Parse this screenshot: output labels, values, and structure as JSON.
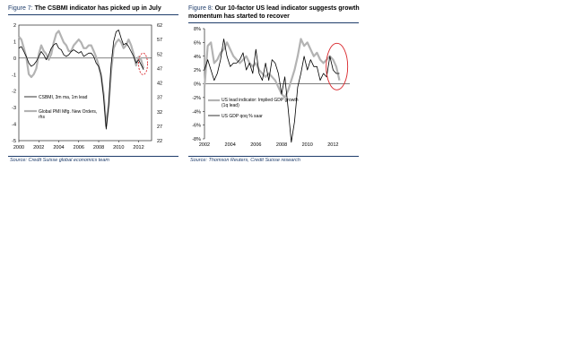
{
  "colors": {
    "accent": "#1f3d6b",
    "grey_series": "#b3b3b3",
    "black_series": "#000000",
    "circle": "#d9252a"
  },
  "panels": [
    {
      "figure": "Figure 7:",
      "title": "The CSBMI indicator has picked up in July",
      "source": "Source: Credit Suisse global economics team"
    },
    {
      "figure": "Figure 8:",
      "title_line1": "Our 10-factor US lead indicator suggests growth",
      "title_line2": "momentum has started to recover",
      "source": "Source: Thomson Reuters, Credit Suisse research"
    }
  ],
  "chart_data": [
    {
      "type": "line",
      "title": "The CSBMI indicator has picked up in July",
      "x_ticks": [
        "2000",
        "2002",
        "2004",
        "2006",
        "2008",
        "2010",
        "2012"
      ],
      "xlim": [
        2000,
        2013.3
      ],
      "y_left_ticks": [
        "2",
        "1",
        "0",
        "-1",
        "-2",
        "-3",
        "-4",
        "-5"
      ],
      "y_left_lim": [
        -5,
        2
      ],
      "y_right_ticks": [
        "62",
        "57",
        "52",
        "47",
        "42",
        "37",
        "32",
        "27",
        "22"
      ],
      "y_right_lim": [
        22,
        62
      ],
      "legend": [
        "CSBMI, 3m ma, 1m lead",
        "Global PMI Mfg. New Orders, rhs"
      ],
      "annotation": "red dashed ellipse around latest readings (2012)",
      "series": [
        {
          "name": "CSBMI, 3m ma, 1m lead",
          "axis": "left",
          "color": "#000000",
          "x": [
            2000,
            2000.25,
            2000.5,
            2000.75,
            2001,
            2001.25,
            2001.5,
            2001.75,
            2002,
            2002.25,
            2002.5,
            2002.75,
            2003,
            2003.25,
            2003.5,
            2003.75,
            2004,
            2004.25,
            2004.5,
            2004.75,
            2005,
            2005.25,
            2005.5,
            2005.75,
            2006,
            2006.25,
            2006.5,
            2006.75,
            2007,
            2007.25,
            2007.5,
            2007.75,
            2008,
            2008.25,
            2008.5,
            2008.75,
            2009,
            2009.25,
            2009.5,
            2009.75,
            2010,
            2010.25,
            2010.5,
            2010.75,
            2011,
            2011.25,
            2011.5,
            2011.75,
            2012,
            2012.25,
            2012.5
          ],
          "values": [
            0.6,
            0.7,
            0.4,
            0.1,
            -0.3,
            -0.5,
            -0.4,
            -0.2,
            0.1,
            0.4,
            0.2,
            -0.1,
            0.2,
            0.6,
            0.8,
            0.9,
            0.6,
            0.5,
            0.2,
            0.1,
            0.2,
            0.4,
            0.5,
            0.4,
            0.3,
            0.4,
            0.1,
            0.2,
            0.3,
            0.3,
            0.1,
            -0.3,
            -0.5,
            -1.0,
            -2.4,
            -4.3,
            -2.8,
            -0.4,
            1.0,
            1.6,
            1.7,
            1.2,
            0.8,
            0.9,
            0.7,
            0.4,
            0.1,
            -0.3,
            -0.1,
            -0.4,
            -0.7
          ]
        },
        {
          "name": "Global PMI Mfg. New Orders, rhs",
          "axis": "right",
          "color": "#b3b3b3",
          "x": [
            2000,
            2000.25,
            2000.5,
            2000.75,
            2001,
            2001.25,
            2001.5,
            2001.75,
            2002,
            2002.25,
            2002.5,
            2002.75,
            2003,
            2003.25,
            2003.5,
            2003.75,
            2004,
            2004.25,
            2004.5,
            2004.75,
            2005,
            2005.25,
            2005.5,
            2005.75,
            2006,
            2006.25,
            2006.5,
            2006.75,
            2007,
            2007.25,
            2007.5,
            2007.75,
            2008,
            2008.25,
            2008.5,
            2008.75,
            2009,
            2009.25,
            2009.5,
            2009.75,
            2010,
            2010.25,
            2010.5,
            2010.75,
            2011,
            2011.25,
            2011.5,
            2011.75,
            2012,
            2012.25,
            2012.5
          ],
          "values": [
            58,
            57,
            54,
            51,
            45,
            44,
            45,
            47,
            52,
            55,
            53,
            52,
            50,
            52,
            56,
            59,
            60,
            58,
            56,
            55,
            53,
            53,
            55,
            56,
            57,
            56,
            54,
            54,
            55,
            55,
            53,
            51,
            48,
            44,
            38,
            27,
            34,
            46,
            54,
            56,
            57,
            56,
            54,
            55,
            57,
            55,
            52,
            48,
            51,
            50,
            47
          ]
        }
      ]
    },
    {
      "type": "line",
      "title": "Our 10-factor US lead indicator suggests growth momentum has started to recover",
      "x_ticks": [
        "2002",
        "2004",
        "2006",
        "2008",
        "2010",
        "2012"
      ],
      "xlim": [
        2002,
        2013.3
      ],
      "y_ticks": [
        "8%",
        "6%",
        "4%",
        "2%",
        "0%",
        "-2%",
        "-4%",
        "-6%",
        "-8%"
      ],
      "ylim": [
        -8,
        8
      ],
      "legend": [
        "US lead indicator: Implied GDP growth (1q lead)",
        "US GDP qoq % saar"
      ],
      "annotation": "red ellipse around latest readings (2012)",
      "series": [
        {
          "name": "US lead indicator: Implied GDP growth (1q lead)",
          "color": "#b3b3b3",
          "x": [
            2002,
            2002.25,
            2002.5,
            2002.75,
            2003,
            2003.25,
            2003.5,
            2003.75,
            2004,
            2004.25,
            2004.5,
            2004.75,
            2005,
            2005.25,
            2005.5,
            2005.75,
            2006,
            2006.25,
            2006.5,
            2006.75,
            2007,
            2007.25,
            2007.5,
            2007.75,
            2008,
            2008.25,
            2008.5,
            2008.75,
            2009,
            2009.25,
            2009.5,
            2009.75,
            2010,
            2010.25,
            2010.5,
            2010.75,
            2011,
            2011.25,
            2011.5,
            2011.75,
            2012,
            2012.25,
            2012.5
          ],
          "values": [
            -0.5,
            5.5,
            6.0,
            3.0,
            3.5,
            4.5,
            5.0,
            6.0,
            5.0,
            4.0,
            3.5,
            3.0,
            3.5,
            4.0,
            3.0,
            2.5,
            3.0,
            2.0,
            1.5,
            1.0,
            1.5,
            1.0,
            0.5,
            -0.5,
            -1.5,
            -2.0,
            -1.0,
            0.5,
            2.0,
            4.0,
            6.5,
            5.5,
            6.0,
            5.0,
            4.0,
            4.5,
            3.5,
            3.0,
            3.5,
            4.0,
            3.5,
            2.5,
            0.5
          ]
        },
        {
          "name": "US GDP qoq % saar",
          "color": "#000000",
          "x": [
            2002,
            2002.25,
            2002.5,
            2002.75,
            2003,
            2003.25,
            2003.5,
            2003.75,
            2004,
            2004.25,
            2004.5,
            2004.75,
            2005,
            2005.25,
            2005.5,
            2005.75,
            2006,
            2006.25,
            2006.5,
            2006.75,
            2007,
            2007.25,
            2007.5,
            2007.75,
            2008,
            2008.25,
            2008.5,
            2008.75,
            2009,
            2009.25,
            2009.5,
            2009.75,
            2010,
            2010.25,
            2010.5,
            2010.75,
            2011,
            2011.25,
            2011.5,
            2011.75,
            2012,
            2012.25,
            2012.5
          ],
          "values": [
            2.0,
            3.5,
            2.0,
            0.5,
            1.5,
            3.5,
            6.5,
            4.0,
            2.5,
            3.0,
            3.0,
            3.5,
            4.5,
            2.0,
            3.0,
            1.5,
            5.0,
            1.5,
            0.5,
            3.0,
            0.5,
            3.5,
            3.0,
            1.5,
            -1.5,
            1.0,
            -3.5,
            -8.5,
            -5.5,
            -0.5,
            1.5,
            4.0,
            2.0,
            3.5,
            2.5,
            2.5,
            0.5,
            1.5,
            1.0,
            4.0,
            2.0,
            1.5,
            1.5
          ]
        }
      ]
    }
  ]
}
